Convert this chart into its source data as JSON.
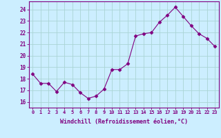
{
  "x": [
    0,
    1,
    2,
    3,
    4,
    5,
    6,
    7,
    8,
    9,
    10,
    11,
    12,
    13,
    14,
    15,
    16,
    17,
    18,
    19,
    20,
    21,
    22,
    23
  ],
  "y": [
    18.4,
    17.6,
    17.6,
    16.9,
    17.7,
    17.5,
    16.8,
    16.3,
    16.5,
    17.1,
    18.8,
    18.8,
    19.3,
    21.7,
    21.9,
    22.0,
    22.9,
    23.5,
    24.2,
    23.4,
    22.6,
    21.9,
    21.5,
    20.8
  ],
  "line_color": "#800080",
  "marker": "D",
  "marker_size": 2.5,
  "bg_color": "#cceeff",
  "grid_color": "#aad4d4",
  "xlabel": "Windchill (Refroidissement éolien,°C)",
  "ylim": [
    15.5,
    24.7
  ],
  "yticks": [
    16,
    17,
    18,
    19,
    20,
    21,
    22,
    23,
    24
  ],
  "xlim": [
    -0.5,
    23.5
  ],
  "xticks": [
    0,
    1,
    2,
    3,
    4,
    5,
    6,
    7,
    8,
    9,
    10,
    11,
    12,
    13,
    14,
    15,
    16,
    17,
    18,
    19,
    20,
    21,
    22,
    23
  ],
  "xtick_labels": [
    "0",
    "1",
    "2",
    "3",
    "4",
    "5",
    "6",
    "7",
    "8",
    "9",
    "10",
    "11",
    "12",
    "13",
    "14",
    "15",
    "16",
    "17",
    "18",
    "19",
    "20",
    "21",
    "22",
    "23"
  ],
  "spine_color": "#800080",
  "tick_color": "#800080",
  "label_color": "#800080"
}
